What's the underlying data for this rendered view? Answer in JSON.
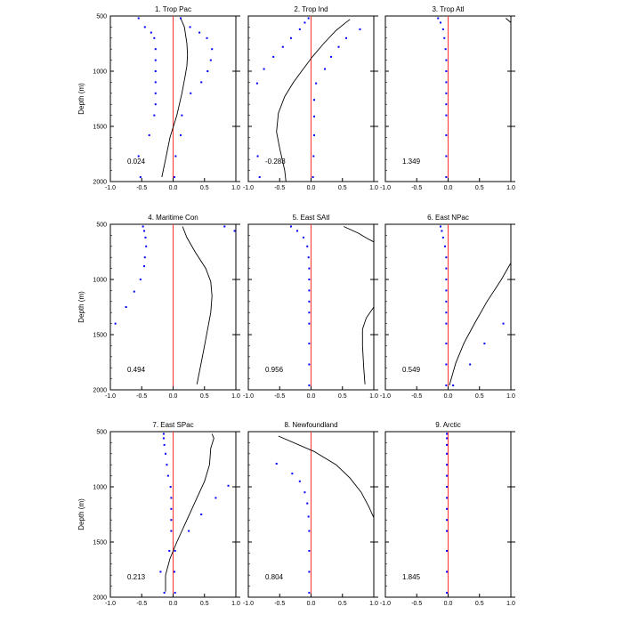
{
  "chart_data": {
    "type": "line",
    "ylabel": "Depth (m)",
    "ylim": [
      2000,
      500
    ],
    "xlim": [
      -1.0,
      1.0
    ],
    "depth_ticks": [
      "500",
      "1000",
      "1500",
      "2000"
    ],
    "x_ticks": [
      "-1.0",
      "-0.5",
      "0.0",
      "0.5",
      "1.0"
    ],
    "panels": [
      {
        "title": "1. Trop Pac",
        "value": "0.024",
        "line": [
          [
            0.12,
            520
          ],
          [
            0.18,
            600
          ],
          [
            0.22,
            750
          ],
          [
            0.23,
            850
          ],
          [
            0.22,
            950
          ],
          [
            0.19,
            1050
          ],
          [
            0.14,
            1200
          ],
          [
            0.06,
            1400
          ],
          [
            -0.05,
            1600
          ],
          [
            -0.12,
            1800
          ],
          [
            -0.18,
            1960
          ]
        ],
        "points_left": [
          [
            -0.55,
            520
          ],
          [
            -0.45,
            600
          ],
          [
            -0.35,
            650
          ],
          [
            -0.3,
            700
          ],
          [
            -0.28,
            800
          ],
          [
            -0.28,
            900
          ],
          [
            -0.28,
            1000
          ],
          [
            -0.28,
            1100
          ],
          [
            -0.28,
            1200
          ],
          [
            -0.28,
            1300
          ],
          [
            -0.3,
            1400
          ],
          [
            -0.38,
            1580
          ],
          [
            -0.55,
            1770
          ],
          [
            -0.52,
            1960
          ]
        ],
        "points_right": [
          [
            0.12,
            520
          ],
          [
            0.27,
            600
          ],
          [
            0.42,
            650
          ],
          [
            0.54,
            700
          ],
          [
            0.62,
            800
          ],
          [
            0.6,
            900
          ],
          [
            0.55,
            1000
          ],
          [
            0.45,
            1100
          ],
          [
            0.28,
            1200
          ],
          [
            0.14,
            1400
          ],
          [
            0.12,
            1580
          ],
          [
            0.04,
            1770
          ],
          [
            0.02,
            1960
          ]
        ]
      },
      {
        "title": "2. Trop Ind",
        "value": "-0.283",
        "line": [
          [
            0.62,
            530
          ],
          [
            0.4,
            630
          ],
          [
            0.2,
            750
          ],
          [
            0.02,
            870
          ],
          [
            -0.15,
            1000
          ],
          [
            -0.28,
            1100
          ],
          [
            -0.42,
            1230
          ],
          [
            -0.52,
            1380
          ],
          [
            -0.55,
            1550
          ],
          [
            -0.5,
            1700
          ],
          [
            -0.42,
            1900
          ],
          [
            -0.4,
            2000
          ]
        ],
        "points_left": [
          [
            -0.04,
            520
          ],
          [
            -0.1,
            560
          ],
          [
            -0.18,
            620
          ],
          [
            -0.32,
            700
          ],
          [
            -0.45,
            780
          ],
          [
            -0.6,
            870
          ],
          [
            -0.75,
            980
          ],
          [
            -0.86,
            1110
          ],
          [
            -0.85,
            1770
          ],
          [
            -0.82,
            1960
          ]
        ],
        "points_right": [
          [
            0.78,
            620
          ],
          [
            0.56,
            700
          ],
          [
            0.44,
            780
          ],
          [
            0.32,
            870
          ],
          [
            0.22,
            980
          ],
          [
            0.08,
            1110
          ],
          [
            0.05,
            1260
          ],
          [
            0.05,
            1410
          ],
          [
            0.05,
            1580
          ],
          [
            0.04,
            1770
          ],
          [
            0.03,
            1960
          ]
        ]
      },
      {
        "title": "3. Trop Atl",
        "value": "1.349",
        "line": [
          [
            0.92,
            520
          ],
          [
            1.0,
            560
          ]
        ],
        "points_left": [
          [
            -0.16,
            520
          ],
          [
            -0.12,
            560
          ],
          [
            -0.08,
            620
          ],
          [
            -0.06,
            700
          ],
          [
            -0.04,
            800
          ],
          [
            -0.03,
            900
          ],
          [
            -0.03,
            1000
          ],
          [
            -0.03,
            1100
          ],
          [
            -0.03,
            1200
          ],
          [
            -0.03,
            1300
          ],
          [
            -0.03,
            1400
          ],
          [
            -0.03,
            1580
          ],
          [
            -0.03,
            1770
          ],
          [
            -0.03,
            1960
          ]
        ],
        "points_right": []
      },
      {
        "title": "4. Maritime Con",
        "value": "0.494",
        "line": [
          [
            0.15,
            520
          ],
          [
            0.22,
            620
          ],
          [
            0.35,
            750
          ],
          [
            0.52,
            900
          ],
          [
            0.6,
            1020
          ],
          [
            0.62,
            1150
          ],
          [
            0.6,
            1300
          ],
          [
            0.55,
            1450
          ],
          [
            0.5,
            1600
          ],
          [
            0.45,
            1750
          ],
          [
            0.38,
            1950
          ]
        ],
        "points_left": [
          [
            -0.48,
            520
          ],
          [
            -0.46,
            560
          ],
          [
            -0.44,
            620
          ],
          [
            -0.43,
            700
          ],
          [
            -0.45,
            800
          ],
          [
            -0.46,
            880
          ],
          [
            -0.52,
            1000
          ],
          [
            -0.62,
            1110
          ],
          [
            -0.75,
            1250
          ],
          [
            -0.92,
            1400
          ]
        ],
        "points_right": [
          [
            0.82,
            520
          ],
          [
            0.98,
            560
          ]
        ]
      },
      {
        "title": "5. East SAtl",
        "value": "0.956",
        "line": [
          [
            0.52,
            520
          ],
          [
            0.75,
            580
          ],
          [
            0.9,
            630
          ],
          [
            1.0,
            660
          ]
        ],
        "line2": [
          [
            1.0,
            1250
          ],
          [
            0.88,
            1350
          ],
          [
            0.82,
            1450
          ],
          [
            0.82,
            1600
          ],
          [
            0.84,
            1800
          ],
          [
            0.86,
            1950
          ]
        ],
        "points_left": [
          [
            -0.32,
            520
          ],
          [
            -0.22,
            560
          ],
          [
            -0.12,
            620
          ],
          [
            -0.06,
            700
          ],
          [
            -0.04,
            800
          ],
          [
            -0.03,
            900
          ],
          [
            -0.03,
            1000
          ],
          [
            -0.03,
            1100
          ],
          [
            -0.03,
            1200
          ],
          [
            -0.03,
            1300
          ],
          [
            -0.03,
            1400
          ],
          [
            -0.03,
            1580
          ],
          [
            -0.03,
            1770
          ],
          [
            -0.03,
            1960
          ]
        ],
        "points_right": []
      },
      {
        "title": "6. East NPac",
        "value": "0.549",
        "line": [
          [
            1.0,
            850
          ],
          [
            0.85,
            1000
          ],
          [
            0.62,
            1200
          ],
          [
            0.42,
            1400
          ],
          [
            0.25,
            1580
          ],
          [
            0.12,
            1760
          ],
          [
            0.02,
            1960
          ]
        ],
        "points_left": [
          [
            -0.12,
            520
          ],
          [
            -0.1,
            560
          ],
          [
            -0.08,
            620
          ],
          [
            -0.05,
            700
          ],
          [
            -0.03,
            800
          ],
          [
            -0.03,
            900
          ],
          [
            -0.03,
            1000
          ],
          [
            -0.03,
            1100
          ],
          [
            -0.03,
            1200
          ],
          [
            -0.03,
            1300
          ],
          [
            -0.03,
            1400
          ],
          [
            -0.03,
            1580
          ],
          [
            -0.03,
            1770
          ],
          [
            -0.03,
            1960
          ]
        ],
        "points_right": [
          [
            0.88,
            1400
          ],
          [
            0.58,
            1580
          ],
          [
            0.35,
            1770
          ],
          [
            0.08,
            1960
          ]
        ]
      },
      {
        "title": "7. East SPac",
        "value": "0.213",
        "line": [
          [
            0.62,
            520
          ],
          [
            0.65,
            560
          ],
          [
            0.6,
            650
          ],
          [
            0.58,
            800
          ],
          [
            0.5,
            950
          ],
          [
            0.38,
            1100
          ],
          [
            0.22,
            1300
          ],
          [
            0.06,
            1500
          ],
          [
            -0.05,
            1650
          ],
          [
            -0.12,
            1800
          ],
          [
            -0.12,
            1950
          ]
        ],
        "points_left": [
          [
            -0.15,
            520
          ],
          [
            -0.15,
            560
          ],
          [
            -0.14,
            620
          ],
          [
            -0.12,
            700
          ],
          [
            -0.1,
            800
          ],
          [
            -0.08,
            900
          ],
          [
            -0.04,
            1000
          ],
          [
            -0.03,
            1100
          ],
          [
            -0.03,
            1200
          ],
          [
            -0.03,
            1300
          ],
          [
            -0.03,
            1400
          ],
          [
            -0.06,
            1580
          ],
          [
            -0.2,
            1770
          ],
          [
            -0.14,
            1960
          ]
        ],
        "points_right": [
          [
            0.88,
            990
          ],
          [
            0.68,
            1100
          ],
          [
            0.45,
            1250
          ],
          [
            0.25,
            1400
          ],
          [
            0.03,
            1580
          ],
          [
            0.02,
            1770
          ],
          [
            0.03,
            1960
          ]
        ]
      },
      {
        "title": "8. Newfoundland",
        "value": "0.804",
        "line": [
          [
            -0.52,
            540
          ],
          [
            0.05,
            680
          ],
          [
            0.4,
            800
          ],
          [
            0.62,
            920
          ],
          [
            0.8,
            1050
          ],
          [
            0.92,
            1180
          ],
          [
            1.0,
            1280
          ]
        ],
        "points_left": [
          [
            -0.55,
            790
          ],
          [
            -0.3,
            880
          ],
          [
            -0.18,
            950
          ],
          [
            -0.1,
            1050
          ],
          [
            -0.06,
            1150
          ],
          [
            -0.04,
            1270
          ],
          [
            -0.03,
            1400
          ],
          [
            -0.03,
            1580
          ],
          [
            -0.03,
            1770
          ],
          [
            -0.03,
            1960
          ]
        ],
        "points_right": []
      },
      {
        "title": "9. Arctic",
        "value": "1.845",
        "line": [],
        "points_left": [
          [
            -0.02,
            520
          ],
          [
            -0.02,
            560
          ],
          [
            -0.02,
            620
          ],
          [
            -0.02,
            700
          ],
          [
            -0.02,
            800
          ],
          [
            -0.02,
            900
          ],
          [
            -0.02,
            1000
          ],
          [
            -0.02,
            1100
          ],
          [
            -0.02,
            1200
          ],
          [
            -0.02,
            1300
          ],
          [
            -0.02,
            1400
          ],
          [
            -0.02,
            1580
          ],
          [
            -0.02,
            1770
          ],
          [
            -0.02,
            1960
          ]
        ],
        "points_right": []
      }
    ]
  },
  "colors": {
    "line": "#000000",
    "zero_line": "#ff3333",
    "points": "#0000ff"
  }
}
